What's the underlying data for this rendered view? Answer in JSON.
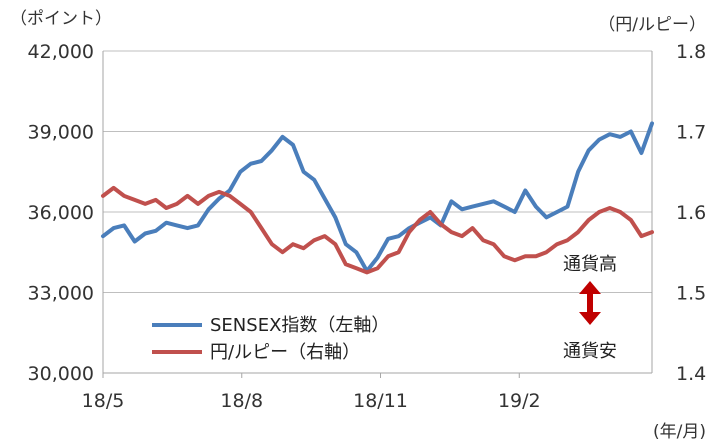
{
  "chart_data": {
    "type": "line",
    "y_left_unit": "（ポイント）",
    "y_right_unit": "（円/ルピー）",
    "x_unit": "(年/月)",
    "y_left": {
      "min": 30000,
      "max": 42000,
      "ticks": [
        "30,000",
        "33,000",
        "36,000",
        "39,000",
        "42,000"
      ]
    },
    "y_right": {
      "min": 1.4,
      "max": 1.8,
      "ticks": [
        "1.4",
        "1.5",
        "1.6",
        "1.7",
        "1.8"
      ]
    },
    "x_range": [
      "2018-05-01",
      "2019-04-30"
    ],
    "x_ticks": [
      {
        "label": "18/5",
        "date": "2018-05-01"
      },
      {
        "label": "18/8",
        "date": "2018-08-01"
      },
      {
        "label": "18/11",
        "date": "2018-11-01"
      },
      {
        "label": "19/2",
        "date": "2019-02-01"
      }
    ],
    "grid": true,
    "legend_placement": "bottom-left",
    "series": [
      {
        "name": "SENSEX指数（左軸）",
        "axis": "left",
        "color": "#4a7ebb",
        "points": [
          [
            "2018-05-01",
            35100
          ],
          [
            "2018-05-08",
            35400
          ],
          [
            "2018-05-15",
            35500
          ],
          [
            "2018-05-22",
            34900
          ],
          [
            "2018-05-29",
            35200
          ],
          [
            "2018-06-05",
            35300
          ],
          [
            "2018-06-12",
            35600
          ],
          [
            "2018-06-19",
            35500
          ],
          [
            "2018-06-26",
            35400
          ],
          [
            "2018-07-03",
            35500
          ],
          [
            "2018-07-10",
            36100
          ],
          [
            "2018-07-17",
            36500
          ],
          [
            "2018-07-24",
            36800
          ],
          [
            "2018-07-31",
            37500
          ],
          [
            "2018-08-07",
            37800
          ],
          [
            "2018-08-14",
            37900
          ],
          [
            "2018-08-21",
            38300
          ],
          [
            "2018-08-28",
            38800
          ],
          [
            "2018-09-04",
            38500
          ],
          [
            "2018-09-11",
            37500
          ],
          [
            "2018-09-18",
            37200
          ],
          [
            "2018-09-25",
            36500
          ],
          [
            "2018-10-02",
            35800
          ],
          [
            "2018-10-09",
            34800
          ],
          [
            "2018-10-16",
            34500
          ],
          [
            "2018-10-23",
            33800
          ],
          [
            "2018-10-30",
            34300
          ],
          [
            "2018-11-06",
            35000
          ],
          [
            "2018-11-13",
            35100
          ],
          [
            "2018-11-20",
            35400
          ],
          [
            "2018-11-27",
            35600
          ],
          [
            "2018-12-04",
            35800
          ],
          [
            "2018-12-11",
            35500
          ],
          [
            "2018-12-18",
            36400
          ],
          [
            "2018-12-25",
            36100
          ],
          [
            "2019-01-01",
            36200
          ],
          [
            "2019-01-08",
            36300
          ],
          [
            "2019-01-15",
            36400
          ],
          [
            "2019-01-22",
            36200
          ],
          [
            "2019-01-29",
            36000
          ],
          [
            "2019-02-05",
            36800
          ],
          [
            "2019-02-12",
            36200
          ],
          [
            "2019-02-19",
            35800
          ],
          [
            "2019-02-26",
            36000
          ],
          [
            "2019-03-05",
            36200
          ],
          [
            "2019-03-12",
            37500
          ],
          [
            "2019-03-19",
            38300
          ],
          [
            "2019-03-26",
            38700
          ],
          [
            "2019-04-02",
            38900
          ],
          [
            "2019-04-09",
            38800
          ],
          [
            "2019-04-16",
            39000
          ],
          [
            "2019-04-23",
            38200
          ],
          [
            "2019-04-30",
            39300
          ]
        ]
      },
      {
        "name": "円/ルピー（右軸）",
        "axis": "right",
        "color": "#c0504d",
        "points": [
          [
            "2018-05-01",
            1.62
          ],
          [
            "2018-05-08",
            1.63
          ],
          [
            "2018-05-15",
            1.62
          ],
          [
            "2018-05-22",
            1.615
          ],
          [
            "2018-05-29",
            1.61
          ],
          [
            "2018-06-05",
            1.615
          ],
          [
            "2018-06-12",
            1.605
          ],
          [
            "2018-06-19",
            1.61
          ],
          [
            "2018-06-26",
            1.62
          ],
          [
            "2018-07-03",
            1.61
          ],
          [
            "2018-07-10",
            1.62
          ],
          [
            "2018-07-17",
            1.625
          ],
          [
            "2018-07-24",
            1.62
          ],
          [
            "2018-07-31",
            1.61
          ],
          [
            "2018-08-07",
            1.6
          ],
          [
            "2018-08-14",
            1.58
          ],
          [
            "2018-08-21",
            1.56
          ],
          [
            "2018-08-28",
            1.55
          ],
          [
            "2018-09-04",
            1.56
          ],
          [
            "2018-09-11",
            1.555
          ],
          [
            "2018-09-18",
            1.565
          ],
          [
            "2018-09-25",
            1.57
          ],
          [
            "2018-10-02",
            1.56
          ],
          [
            "2018-10-09",
            1.535
          ],
          [
            "2018-10-16",
            1.53
          ],
          [
            "2018-10-23",
            1.525
          ],
          [
            "2018-10-30",
            1.53
          ],
          [
            "2018-11-06",
            1.545
          ],
          [
            "2018-11-13",
            1.55
          ],
          [
            "2018-11-20",
            1.575
          ],
          [
            "2018-11-27",
            1.59
          ],
          [
            "2018-12-04",
            1.6
          ],
          [
            "2018-12-11",
            1.585
          ],
          [
            "2018-12-18",
            1.575
          ],
          [
            "2018-12-25",
            1.57
          ],
          [
            "2019-01-01",
            1.58
          ],
          [
            "2019-01-08",
            1.565
          ],
          [
            "2019-01-15",
            1.56
          ],
          [
            "2019-01-22",
            1.545
          ],
          [
            "2019-01-29",
            1.54
          ],
          [
            "2019-02-05",
            1.545
          ],
          [
            "2019-02-12",
            1.545
          ],
          [
            "2019-02-19",
            1.55
          ],
          [
            "2019-02-26",
            1.56
          ],
          [
            "2019-03-05",
            1.565
          ],
          [
            "2019-03-12",
            1.575
          ],
          [
            "2019-03-19",
            1.59
          ],
          [
            "2019-03-26",
            1.6
          ],
          [
            "2019-04-02",
            1.605
          ],
          [
            "2019-04-09",
            1.6
          ],
          [
            "2019-04-16",
            1.59
          ],
          [
            "2019-04-23",
            1.57
          ],
          [
            "2019-04-30",
            1.575
          ]
        ]
      }
    ],
    "annotations": {
      "up_label": "通貨高",
      "down_label": "通貨安",
      "arrow_color": "#c00000"
    }
  }
}
